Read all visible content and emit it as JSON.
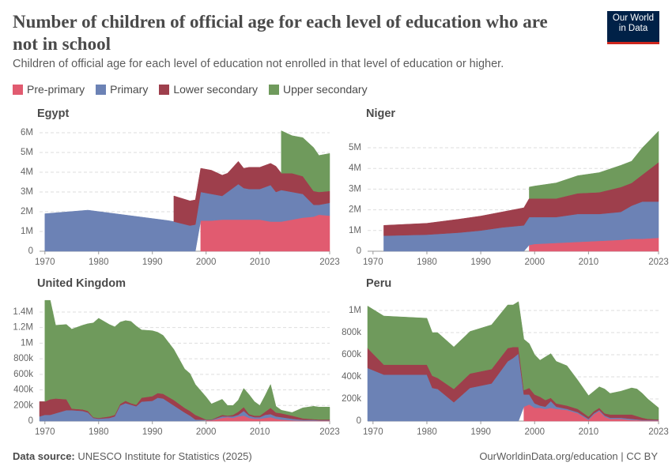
{
  "header": {
    "title": "Number of children of official age for each level of education who are not in school",
    "subtitle": "Children of official age for each level of education not enrolled in that level of education or higher.",
    "logo": [
      "Our World",
      "in Data"
    ]
  },
  "footer": {
    "source_label": "Data source:",
    "source": "UNESCO Institute for Statistics (2025)",
    "url": "OurWorldinData.org/education | CC BY"
  },
  "chart_data": [
    {
      "type": "stacked_area",
      "title": "Egypt",
      "x": [
        1970,
        1978,
        1993,
        1994,
        1997,
        1998,
        1999,
        2001,
        2003,
        2004,
        2006,
        2007,
        2008,
        2010,
        2012,
        2013,
        2014,
        2016,
        2018,
        2020,
        2021,
        2023
      ],
      "xlim": [
        1969,
        2023
      ],
      "xticks": [
        1970,
        1980,
        1990,
        2000,
        2010,
        2023
      ],
      "ylim": [
        0,
        6000000
      ],
      "yticks": [
        0,
        {
          "value": 1000000,
          "label": "1M"
        },
        {
          "value": 2000000,
          "label": "2M"
        },
        {
          "value": 3000000,
          "label": "3M"
        },
        {
          "value": 4000000,
          "label": "4M"
        },
        {
          "value": 5000000,
          "label": "5M"
        },
        {
          "value": 6000000,
          "label": "6M"
        }
      ],
      "grid": true,
      "series": [
        {
          "name": "Pre-primary",
          "color": "#e15b70",
          "values": [
            null,
            null,
            null,
            null,
            null,
            null,
            1550000,
            1550000,
            1600000,
            1600000,
            1600000,
            1600000,
            1600000,
            1600000,
            1500000,
            1500000,
            1500000,
            1600000,
            1700000,
            1750000,
            1850000,
            1800000
          ]
        },
        {
          "name": "Primary",
          "color": "#6c82b5",
          "values": [
            1900000,
            2080000,
            1550000,
            1500000,
            1300000,
            1350000,
            1450000,
            1350000,
            1200000,
            1400000,
            1800000,
            1600000,
            1550000,
            1550000,
            1850000,
            1500000,
            1600000,
            1400000,
            1200000,
            600000,
            500000,
            650000
          ]
        },
        {
          "name": "Lower secondary",
          "color": "#9e3f4c",
          "values": [
            null,
            null,
            null,
            1300000,
            1250000,
            1250000,
            1200000,
            1200000,
            1050000,
            950000,
            1150000,
            1000000,
            1100000,
            1100000,
            1100000,
            1300000,
            850000,
            950000,
            900000,
            700000,
            650000,
            600000
          ]
        },
        {
          "name": "Upper secondary",
          "color": "#6f9a5c",
          "values": [
            null,
            null,
            null,
            null,
            null,
            null,
            null,
            null,
            null,
            null,
            null,
            null,
            null,
            null,
            null,
            null,
            2150000,
            1900000,
            1950000,
            2200000,
            1850000,
            1900000
          ]
        }
      ]
    },
    {
      "type": "stacked_area",
      "title": "Niger",
      "x": [
        1972,
        1980,
        1986,
        1990,
        1994,
        1998,
        1999,
        2000,
        2004,
        2008,
        2012,
        2016,
        2018,
        2020,
        2023
      ],
      "xlim": [
        1969,
        2023
      ],
      "xticks": [
        1970,
        1980,
        1990,
        2000,
        2010,
        2023
      ],
      "ylim": [
        0,
        6000000
      ],
      "yticks": [
        0,
        {
          "value": 1000000,
          "label": "1M"
        },
        {
          "value": 2000000,
          "label": "2M"
        },
        {
          "value": 3000000,
          "label": "3M"
        },
        {
          "value": 4000000,
          "label": "4M"
        },
        {
          "value": 5000000,
          "label": "5M"
        }
      ],
      "grid": true,
      "series": [
        {
          "name": "Pre-primary",
          "color": "#e15b70",
          "values": [
            null,
            null,
            null,
            null,
            null,
            null,
            300000,
            350000,
            400000,
            450000,
            500000,
            550000,
            600000,
            600000,
            650000
          ]
        },
        {
          "name": "Primary",
          "color": "#6c82b5",
          "values": [
            750000,
            800000,
            900000,
            1000000,
            1150000,
            1250000,
            1350000,
            1300000,
            1250000,
            1350000,
            1300000,
            1350000,
            1600000,
            1800000,
            1750000
          ]
        },
        {
          "name": "Lower secondary",
          "color": "#9e3f4c",
          "values": [
            500000,
            550000,
            650000,
            700000,
            750000,
            850000,
            900000,
            900000,
            900000,
            1000000,
            1050000,
            1200000,
            1100000,
            1300000,
            1900000
          ]
        },
        {
          "name": "Upper secondary",
          "color": "#6f9a5c",
          "values": [
            null,
            null,
            null,
            null,
            null,
            null,
            550000,
            600000,
            750000,
            850000,
            950000,
            1050000,
            1050000,
            1300000,
            1500000
          ]
        }
      ]
    },
    {
      "type": "stacked_area",
      "title": "United Kingdom",
      "x": [
        1969,
        1970,
        1971,
        1972,
        1974,
        1975,
        1977,
        1978,
        1979,
        1980,
        1982,
        1983,
        1984,
        1985,
        1986,
        1987,
        1988,
        1990,
        1991,
        1992,
        1994,
        1996,
        1997,
        1998,
        2000,
        2001,
        2003,
        2004,
        2005,
        2006,
        2007,
        2008,
        2009,
        2010,
        2011,
        2012,
        2013,
        2014,
        2016,
        2018,
        2020,
        2021,
        2023
      ],
      "xlim": [
        1969,
        2023
      ],
      "xticks": [
        1970,
        1980,
        1990,
        2000,
        2010,
        2023
      ],
      "ylim": [
        0,
        1500000
      ],
      "yticks": [
        0,
        {
          "value": 200000,
          "label": "200k"
        },
        {
          "value": 400000,
          "label": "400k"
        },
        {
          "value": 600000,
          "label": "600k"
        },
        {
          "value": 800000,
          "label": "800k"
        },
        {
          "value": 1000000,
          "label": "1M"
        },
        {
          "value": 1200000,
          "label": "1.2M"
        },
        {
          "value": 1400000,
          "label": "1.4M"
        }
      ],
      "grid": true,
      "series": [
        {
          "name": "Pre-primary",
          "color": "#e15b70",
          "values": [
            null,
            null,
            null,
            null,
            null,
            null,
            null,
            null,
            null,
            null,
            null,
            null,
            null,
            null,
            null,
            null,
            null,
            null,
            null,
            null,
            null,
            null,
            null,
            null,
            10000,
            10000,
            40000,
            50000,
            40000,
            60000,
            70000,
            40000,
            30000,
            30000,
            40000,
            50000,
            30000,
            20000,
            10000,
            5000,
            5000,
            5000,
            5000
          ]
        },
        {
          "name": "Primary",
          "color": "#6c82b5",
          "values": [
            60000,
            80000,
            80000,
            100000,
            140000,
            140000,
            130000,
            110000,
            40000,
            30000,
            40000,
            60000,
            200000,
            230000,
            210000,
            190000,
            250000,
            260000,
            300000,
            290000,
            200000,
            110000,
            70000,
            20000,
            5000,
            5000,
            20000,
            10000,
            20000,
            20000,
            60000,
            30000,
            20000,
            20000,
            40000,
            40000,
            30000,
            30000,
            20000,
            10000,
            10000,
            5000,
            5000
          ]
        },
        {
          "name": "Lower secondary",
          "color": "#9e3f4c",
          "values": [
            190000,
            170000,
            200000,
            190000,
            140000,
            20000,
            20000,
            20000,
            10000,
            10000,
            20000,
            20000,
            20000,
            30000,
            20000,
            20000,
            50000,
            60000,
            60000,
            60000,
            70000,
            60000,
            60000,
            60000,
            5000,
            5000,
            20000,
            10000,
            20000,
            40000,
            50000,
            20000,
            20000,
            20000,
            40000,
            80000,
            50000,
            50000,
            40000,
            20000,
            10000,
            10000,
            10000
          ]
        },
        {
          "name": "Upper secondary",
          "color": "#6f9a5c",
          "values": [
            null,
            1300000,
            1270000,
            940000,
            960000,
            1020000,
            1080000,
            1120000,
            1210000,
            1280000,
            1180000,
            1130000,
            1050000,
            1030000,
            1050000,
            1010000,
            870000,
            840000,
            780000,
            750000,
            650000,
            500000,
            480000,
            390000,
            290000,
            200000,
            200000,
            130000,
            120000,
            150000,
            240000,
            250000,
            180000,
            130000,
            210000,
            300000,
            80000,
            40000,
            40000,
            135000,
            165000,
            160000,
            160000
          ]
        }
      ]
    },
    {
      "type": "stacked_area",
      "title": "Peru",
      "x": [
        1969,
        1972,
        1980,
        1981,
        1982,
        1985,
        1988,
        1992,
        1995,
        1996,
        1997,
        1998,
        1999,
        2000,
        2001,
        2002,
        2003,
        2004,
        2006,
        2008,
        2010,
        2011,
        2012,
        2013,
        2014,
        2016,
        2018,
        2019,
        2020,
        2021,
        2023
      ],
      "xlim": [
        1969,
        2023
      ],
      "xticks": [
        1970,
        1980,
        1990,
        2000,
        2010,
        2023
      ],
      "ylim": [
        0,
        1100000
      ],
      "yticks": [
        0,
        {
          "value": 200000,
          "label": "200k"
        },
        {
          "value": 400000,
          "label": "400k"
        },
        {
          "value": 600000,
          "label": "600k"
        },
        {
          "value": 800000,
          "label": "800k"
        },
        {
          "value": 1000000,
          "label": "1M"
        }
      ],
      "grid": true,
      "series": [
        {
          "name": "Pre-primary",
          "color": "#e15b70",
          "values": [
            null,
            null,
            null,
            null,
            null,
            null,
            null,
            null,
            null,
            null,
            null,
            130000,
            150000,
            120000,
            120000,
            110000,
            120000,
            110000,
            100000,
            70000,
            10000,
            60000,
            90000,
            40000,
            20000,
            20000,
            10000,
            10000,
            5000,
            5000,
            5000
          ]
        },
        {
          "name": "Primary",
          "color": "#6c82b5",
          "values": [
            480000,
            420000,
            420000,
            300000,
            290000,
            170000,
            300000,
            340000,
            540000,
            570000,
            610000,
            110000,
            90000,
            40000,
            20000,
            20000,
            60000,
            20000,
            10000,
            10000,
            10000,
            10000,
            10000,
            10000,
            10000,
            10000,
            10000,
            5000,
            5000,
            5000,
            5000
          ]
        },
        {
          "name": "Lower secondary",
          "color": "#9e3f4c",
          "values": [
            180000,
            90000,
            90000,
            110000,
            100000,
            120000,
            130000,
            130000,
            120000,
            100000,
            60000,
            40000,
            60000,
            80000,
            80000,
            60000,
            30000,
            30000,
            30000,
            30000,
            20000,
            20000,
            20000,
            20000,
            30000,
            30000,
            40000,
            30000,
            20000,
            10000,
            5000
          ]
        },
        {
          "name": "Upper secondary",
          "color": "#6f9a5c",
          "values": [
            380000,
            440000,
            420000,
            390000,
            410000,
            380000,
            380000,
            400000,
            390000,
            380000,
            410000,
            460000,
            400000,
            360000,
            330000,
            390000,
            400000,
            380000,
            360000,
            260000,
            190000,
            180000,
            190000,
            220000,
            190000,
            210000,
            240000,
            245000,
            220000,
            180000,
            105000
          ]
        }
      ]
    }
  ]
}
